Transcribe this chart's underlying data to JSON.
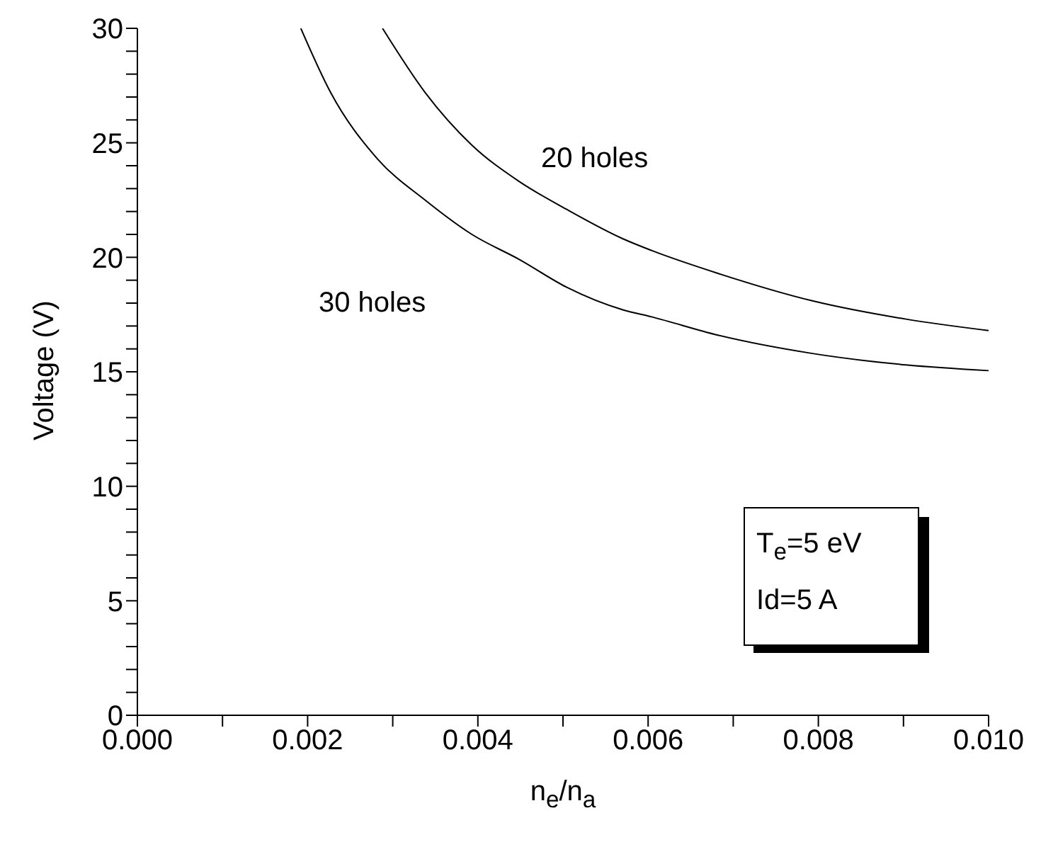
{
  "chart_data": {
    "type": "line",
    "xlabel": "n$_{e}$/n$_{a}$",
    "ylabel": "Voltage (V)",
    "series": [
      {
        "color": "#000000",
        "x": [
          0.00288,
          0.00338,
          0.00393,
          0.00449,
          0.00504,
          0.00571,
          0.00604,
          0.00682,
          0.00793,
          0.00903,
          0.01
        ],
        "values": [
          30,
          27.2,
          24.9,
          23.3,
          22.1,
          20.8,
          20.3,
          19.3,
          18.1,
          17.3,
          16.8
        ]
      },
      {
        "color": "#000000",
        "x": [
          0.00192,
          0.00227,
          0.00282,
          0.00338,
          0.00393,
          0.00449,
          0.00504,
          0.00571,
          0.00604,
          0.00682,
          0.00793,
          0.00903,
          0.01
        ],
        "values": [
          30,
          27.2,
          24.3,
          22.5,
          21.0,
          19.9,
          18.7,
          17.7,
          17.4,
          16.6,
          15.8,
          15.3,
          15.05
        ]
      }
    ],
    "annotations": [
      "20 holes",
      "30 holes",
      "T$_{e}$=5 eV",
      "Id=5 A"
    ],
    "xlim": [
      0,
      0.01
    ],
    "xticks": [
      {
        "value": 0,
        "label": "0.000"
      },
      {
        "value": 0.001,
        "label": null
      },
      {
        "value": 0.002,
        "label": "0.002"
      },
      {
        "value": 0.003,
        "label": null
      },
      {
        "value": 0.004,
        "label": "0.004"
      },
      {
        "value": 0.005,
        "label": null
      },
      {
        "value": 0.006,
        "label": "0.006"
      },
      {
        "value": 0.007,
        "label": null
      },
      {
        "value": 0.008,
        "label": "0.008"
      },
      {
        "value": 0.009,
        "label": null
      },
      {
        "value": 0.01,
        "label": "0.010"
      }
    ],
    "ylim": [
      0,
      30
    ],
    "yticks": [
      0,
      {
        "value": 1,
        "label": null
      },
      {
        "value": 2,
        "label": null
      },
      {
        "value": 3,
        "label": null
      },
      {
        "value": 4,
        "label": null
      },
      5,
      {
        "value": 6,
        "label": null
      },
      {
        "value": 7,
        "label": null
      },
      {
        "value": 8,
        "label": null
      },
      {
        "value": 9,
        "label": null
      },
      10,
      {
        "value": 11,
        "label": null
      },
      {
        "value": 12,
        "label": null
      },
      {
        "value": 13,
        "label": null
      },
      {
        "value": 14,
        "label": null
      },
      15,
      {
        "value": 16,
        "label": null
      },
      {
        "value": 17,
        "label": null
      },
      {
        "value": 18,
        "label": null
      },
      {
        "value": 19,
        "label": null
      },
      20,
      {
        "value": 21,
        "label": null
      },
      {
        "value": 22,
        "label": null
      },
      {
        "value": 23,
        "label": null
      },
      {
        "value": 24,
        "label": null
      },
      25,
      {
        "value": 26,
        "label": null
      },
      {
        "value": 27,
        "label": null
      },
      {
        "value": 28,
        "label": null
      },
      {
        "value": 29,
        "label": null
      },
      30
    ],
    "marker": "none",
    "line_style": "solid"
  }
}
